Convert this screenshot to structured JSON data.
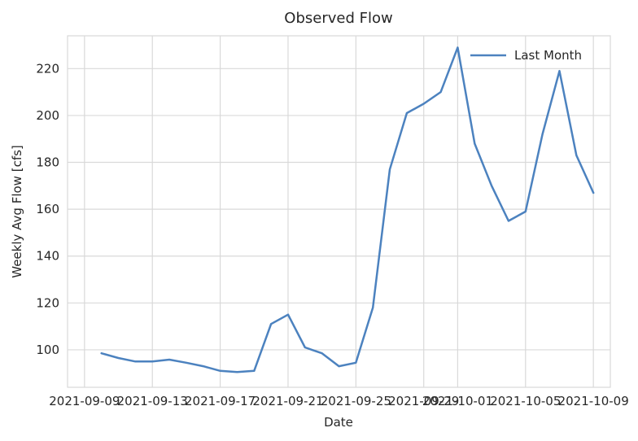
{
  "chart_data": {
    "type": "line",
    "title": "Observed Flow",
    "xlabel": "Date",
    "ylabel": "Weekly Avg Flow [cfs]",
    "xlim": [
      "2021-09-08",
      "2021-10-10"
    ],
    "ylim": [
      84,
      234
    ],
    "grid": true,
    "legend_position": "top-right",
    "x_ticks": [
      "2021-09-09",
      "2021-09-13",
      "2021-09-17",
      "2021-09-21",
      "2021-09-25",
      "2021-09-29",
      "2021-10-01",
      "2021-10-05",
      "2021-10-09"
    ],
    "y_ticks": [
      100,
      120,
      140,
      160,
      180,
      200,
      220
    ],
    "series": [
      {
        "name": "Last Month",
        "color": "#4c82bf",
        "x": [
          "2021-09-10",
          "2021-09-11",
          "2021-09-12",
          "2021-09-13",
          "2021-09-14",
          "2021-09-15",
          "2021-09-16",
          "2021-09-17",
          "2021-09-18",
          "2021-09-19",
          "2021-09-20",
          "2021-09-21",
          "2021-09-22",
          "2021-09-23",
          "2021-09-24",
          "2021-09-25",
          "2021-09-26",
          "2021-09-27",
          "2021-09-28",
          "2021-09-29",
          "2021-09-30",
          "2021-10-01",
          "2021-10-02",
          "2021-10-03",
          "2021-10-04",
          "2021-10-05",
          "2021-10-06",
          "2021-10-07",
          "2021-10-08",
          "2021-10-09"
        ],
        "values": [
          98.5,
          96.5,
          95,
          95,
          95.8,
          94.5,
          93,
          91,
          90.5,
          91,
          111,
          115,
          101,
          98.5,
          93,
          94.5,
          118,
          177,
          201,
          205,
          210,
          229,
          188,
          170,
          155,
          159,
          192,
          219,
          183,
          167
        ]
      }
    ]
  }
}
